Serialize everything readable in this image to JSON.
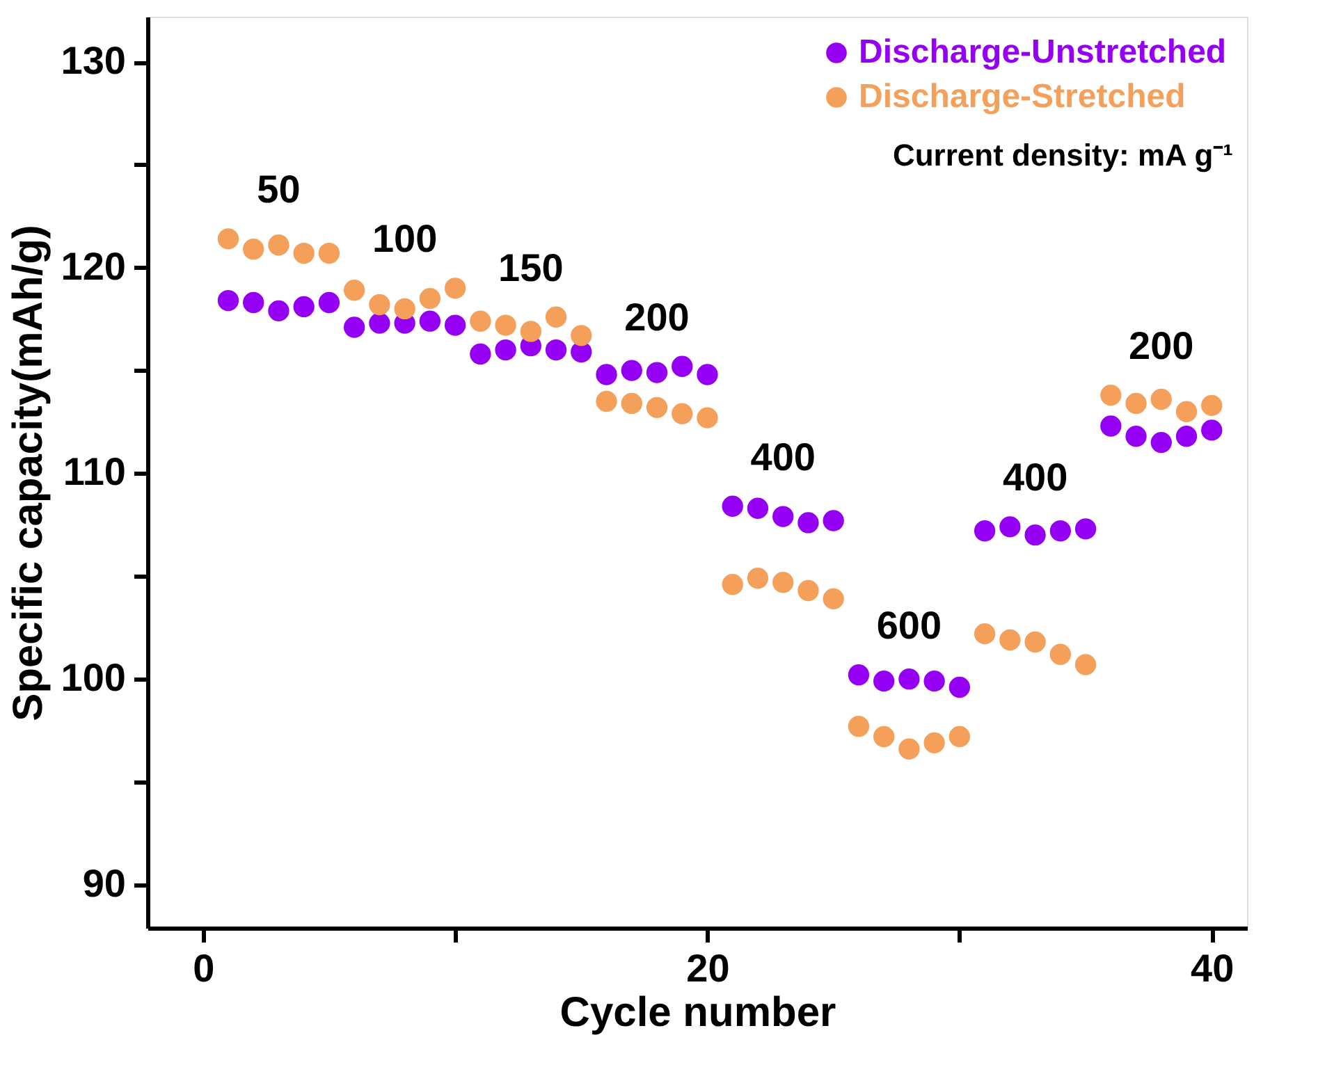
{
  "chart_data": {
    "type": "scatter",
    "xlabel": "Cycle number",
    "ylabel": "Specific capacity(mAh/g)",
    "x": [
      1,
      2,
      3,
      4,
      5,
      6,
      7,
      8,
      9,
      10,
      11,
      12,
      13,
      14,
      15,
      16,
      17,
      18,
      19,
      20,
      21,
      22,
      23,
      24,
      25,
      26,
      27,
      28,
      29,
      30,
      31,
      32,
      33,
      34,
      35,
      36,
      37,
      38,
      39,
      40
    ],
    "series": [
      {
        "name": "Discharge-Unstretched",
        "color": "#9500f5",
        "values": [
          118.4,
          118.3,
          117.9,
          118.1,
          118.3,
          117.1,
          117.3,
          117.3,
          117.4,
          117.2,
          115.8,
          116.0,
          116.2,
          116.0,
          115.9,
          114.8,
          115.0,
          114.9,
          115.2,
          114.8,
          108.4,
          108.3,
          107.9,
          107.6,
          107.7,
          100.2,
          99.9,
          100.0,
          99.9,
          99.6,
          107.2,
          107.4,
          107.0,
          107.2,
          107.3,
          112.3,
          111.8,
          111.5,
          111.8,
          112.1
        ]
      },
      {
        "name": "Discharge-Stretched",
        "color": "#f5a05a",
        "values": [
          121.4,
          120.9,
          121.1,
          120.7,
          120.7,
          118.9,
          118.2,
          118.0,
          118.5,
          119.0,
          117.4,
          117.2,
          116.9,
          117.6,
          116.7,
          113.5,
          113.4,
          113.2,
          112.9,
          112.7,
          104.6,
          104.9,
          104.7,
          104.3,
          103.9,
          97.7,
          97.2,
          96.6,
          96.9,
          97.2,
          102.2,
          101.9,
          101.8,
          101.2,
          100.7,
          113.8,
          113.4,
          113.6,
          113.0,
          113.3
        ]
      }
    ],
    "xlim": [
      -2.2,
      41.4
    ],
    "ylim": [
      87.9,
      132.2
    ],
    "xticks": [
      0,
      {
        "value": 10,
        "label": null
      },
      20,
      {
        "value": 30,
        "label": null
      },
      40
    ],
    "yticks": [
      90,
      {
        "value": 95,
        "label": null
      },
      100,
      {
        "value": 105,
        "label": null
      },
      110,
      {
        "value": 115,
        "label": null
      },
      120,
      {
        "value": 125,
        "label": null
      },
      130
    ],
    "annotations": [
      "50",
      "100",
      "150",
      "200",
      "400",
      "600",
      "400",
      "200",
      "Current density: mA g⁻¹"
    ],
    "legend": "top right",
    "grid": false,
    "marker": "circle"
  }
}
